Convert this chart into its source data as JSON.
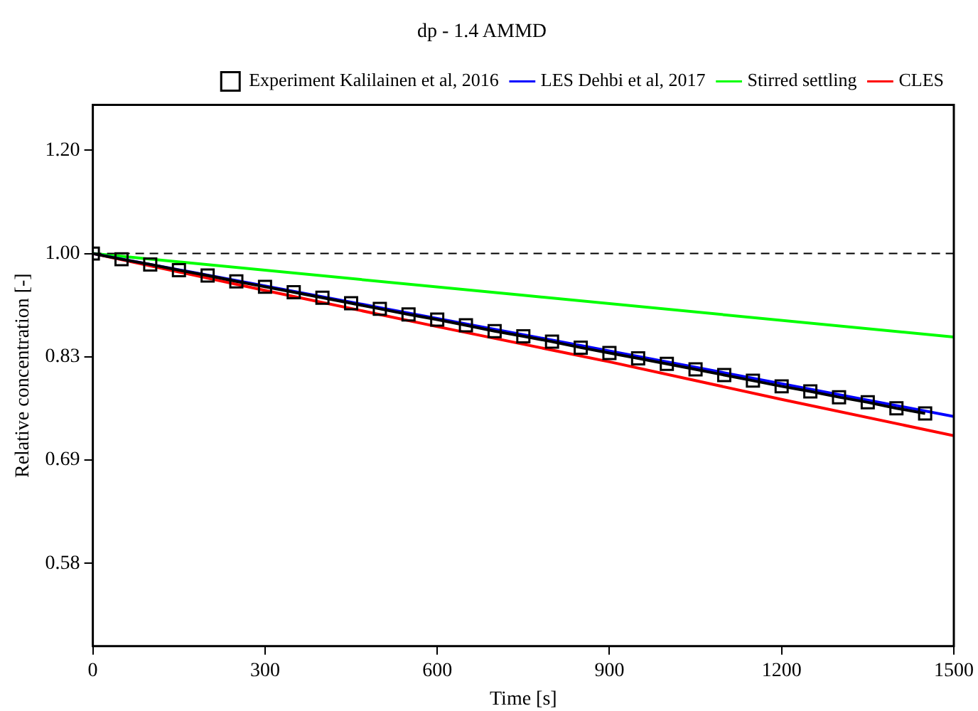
{
  "chart_data": {
    "type": "line",
    "title": "dp - 1.4 AMMD",
    "xlabel": "Time [s]",
    "ylabel": "Relative concentration [-]",
    "xlim": [
      0,
      1500
    ],
    "xticks": [
      0,
      300,
      600,
      900,
      1200,
      1500
    ],
    "ylim": [
      0.5,
      1.3
    ],
    "yticks": [
      {
        "value": 0.5787,
        "label": "0.58"
      },
      {
        "value": 0.6944,
        "label": "0.69"
      },
      {
        "value": 0.8333,
        "label": "0.83"
      },
      {
        "value": 1,
        "label": "1.00"
      },
      {
        "value": 1.2,
        "label": "1.20"
      }
    ],
    "log": "y",
    "grid": false,
    "legend": "top right",
    "ref_lines": [
      {
        "axis": "y",
        "value": 1,
        "label": null,
        "color": "#000000",
        "line_style": "dashed"
      }
    ],
    "series": [
      {
        "name": "Experiment Kalilainen et al, 2016",
        "color": "#000000",
        "marker": "square",
        "line_style": "solid",
        "x": [
          0,
          50,
          100,
          150,
          200,
          250,
          300,
          350,
          400,
          450,
          500,
          550,
          600,
          650,
          700,
          750,
          800,
          850,
          900,
          950,
          1000,
          1050,
          1100,
          1150,
          1200,
          1250,
          1300,
          1350,
          1400,
          1450
        ],
        "values": [
          1,
          0.99,
          0.981,
          0.971,
          0.962,
          0.952,
          0.943,
          0.934,
          0.925,
          0.916,
          0.907,
          0.898,
          0.89,
          0.881,
          0.872,
          0.864,
          0.856,
          0.847,
          0.839,
          0.831,
          0.823,
          0.815,
          0.807,
          0.799,
          0.791,
          0.784,
          0.776,
          0.769,
          0.761,
          0.754
        ]
      },
      {
        "name": "LES Dehbi et al, 2017",
        "color": "#0000ff",
        "marker": "none",
        "line_style": "solid",
        "x": [
          0,
          500,
          1000,
          1500
        ],
        "values": [
          1,
          0.909,
          0.826,
          0.75
        ]
      },
      {
        "name": "Stirred settling",
        "color": "#00ff00",
        "marker": "none",
        "line_style": "solid",
        "x": [
          0,
          750,
          1500
        ],
        "values": [
          1,
          0.929,
          0.863
        ]
      },
      {
        "name": "CLES",
        "color": "#ff0000",
        "marker": "none",
        "line_style": "solid",
        "x": [
          0,
          300,
          600,
          900,
          1200,
          1500
        ],
        "values": [
          1,
          0.937,
          0.879,
          0.826,
          0.773,
          0.725
        ]
      }
    ]
  }
}
